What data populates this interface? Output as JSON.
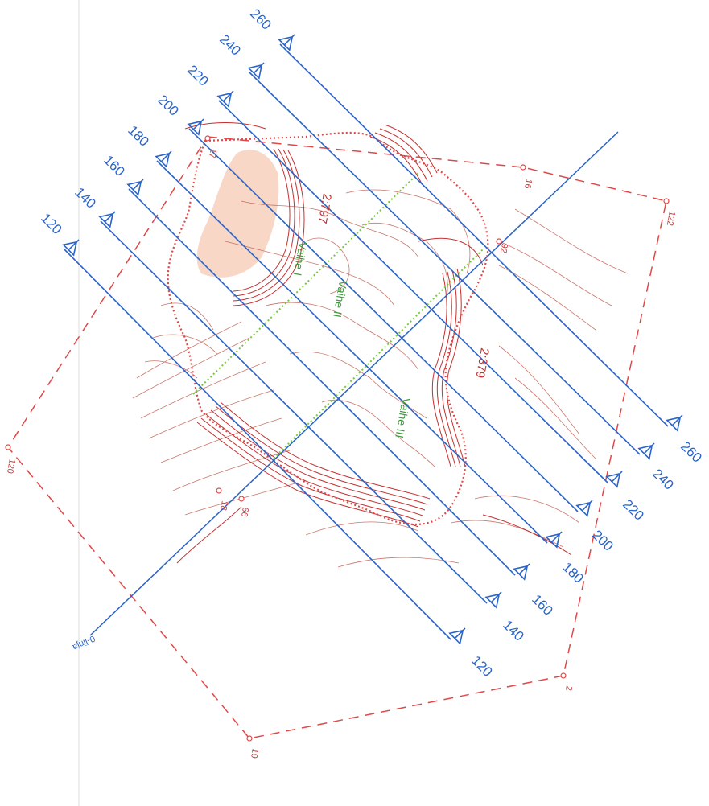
{
  "map": {
    "colors": {
      "section_line": "#2a64c8",
      "boundary": "#e04848",
      "contour": "#b84a3a",
      "slope": "#c43030",
      "phase_line": "#78c83c",
      "phase_text": "#3c9a3c",
      "pit_fill": "#f6c9b4",
      "margin_line": "#dddddd"
    },
    "section_labels": [
      {
        "start": "120",
        "end": "120"
      },
      {
        "start": "140",
        "end": "140"
      },
      {
        "start": "160",
        "end": "160"
      },
      {
        "start": "180",
        "end": "180"
      },
      {
        "start": "200",
        "end": "200"
      },
      {
        "start": "220",
        "end": "220"
      },
      {
        "start": "240",
        "end": "240"
      },
      {
        "start": "260",
        "end": "260"
      }
    ],
    "point_labels": [
      "122",
      "120",
      "2",
      "19",
      "16",
      "92",
      "18",
      "66",
      "17"
    ],
    "area_labels": [
      "2:797",
      "2:379"
    ],
    "phase_labels": [
      "Vaihe I",
      "Vaihe II",
      "Vaihe III"
    ],
    "axis_label": "0-linja",
    "icons": [
      "section-arrow-icon",
      "survey-point-icon"
    ]
  }
}
